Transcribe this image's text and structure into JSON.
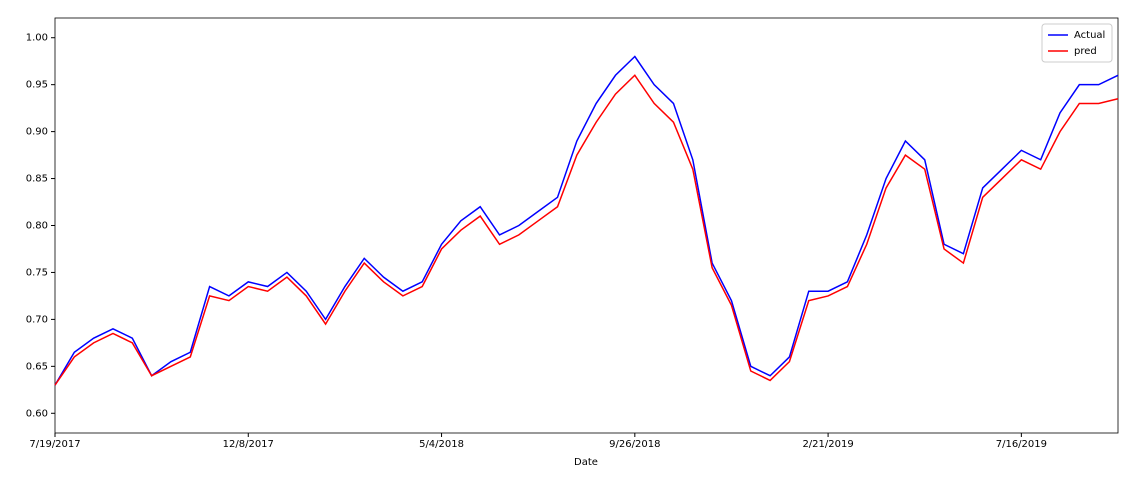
{
  "chart_data": {
    "type": "line",
    "xlabel": "Date",
    "categories": [
      "7/19/2017",
      null,
      null,
      null,
      null,
      null,
      null,
      null,
      null,
      null,
      "12/8/2017",
      null,
      null,
      null,
      null,
      null,
      null,
      null,
      null,
      null,
      "5/4/2018",
      null,
      null,
      null,
      null,
      null,
      null,
      null,
      null,
      null,
      "9/26/2018",
      null,
      null,
      null,
      null,
      null,
      null,
      null,
      null,
      null,
      "2/21/2019",
      null,
      null,
      null,
      null,
      null,
      null,
      null,
      null,
      null,
      "7/16/2019",
      null,
      null,
      null,
      null,
      null
    ],
    "series": [
      {
        "name": "Actual",
        "color": "#0000ff",
        "values": [
          0.63,
          0.665,
          0.68,
          0.69,
          0.68,
          0.64,
          0.655,
          0.665,
          0.735,
          0.725,
          0.74,
          0.735,
          0.75,
          0.73,
          0.7,
          0.735,
          0.765,
          0.745,
          0.73,
          0.74,
          0.78,
          0.805,
          0.82,
          0.79,
          0.8,
          0.815,
          0.83,
          0.89,
          0.93,
          0.96,
          0.98,
          0.95,
          0.93,
          0.87,
          0.76,
          0.72,
          0.65,
          0.64,
          0.66,
          0.73,
          0.73,
          0.74,
          0.79,
          0.85,
          0.89,
          0.87,
          0.78,
          0.77,
          0.84,
          0.86,
          0.88,
          0.87,
          0.92,
          0.95,
          0.95,
          0.96
        ]
      },
      {
        "name": "pred",
        "color": "#ff0000",
        "values": [
          0.63,
          0.66,
          0.675,
          0.685,
          0.675,
          0.64,
          0.65,
          0.66,
          0.725,
          0.72,
          0.735,
          0.73,
          0.745,
          0.725,
          0.695,
          0.73,
          0.76,
          0.74,
          0.725,
          0.735,
          0.775,
          0.795,
          0.81,
          0.78,
          0.79,
          0.805,
          0.82,
          0.875,
          0.91,
          0.94,
          0.96,
          0.93,
          0.91,
          0.86,
          0.755,
          0.715,
          0.645,
          0.635,
          0.655,
          0.72,
          0.725,
          0.735,
          0.78,
          0.84,
          0.875,
          0.86,
          0.775,
          0.76,
          0.83,
          0.85,
          0.87,
          0.86,
          0.9,
          0.93,
          0.93,
          0.935
        ]
      }
    ],
    "xlim": [
      0,
      55
    ],
    "ylim": [
      0.579,
      1.021
    ],
    "yticks": [
      {
        "value": 0.6,
        "label": "0.60"
      },
      {
        "value": 0.65,
        "label": "0.65"
      },
      {
        "value": 0.7,
        "label": "0.70"
      },
      {
        "value": 0.75,
        "label": "0.75"
      },
      {
        "value": 0.8,
        "label": "0.80"
      },
      {
        "value": 0.85,
        "label": "0.85"
      },
      {
        "value": 0.9,
        "label": "0.90"
      },
      {
        "value": 0.95,
        "label": "0.95"
      },
      {
        "value": 1.0,
        "label": "1.00"
      }
    ],
    "legend": "upper right"
  }
}
